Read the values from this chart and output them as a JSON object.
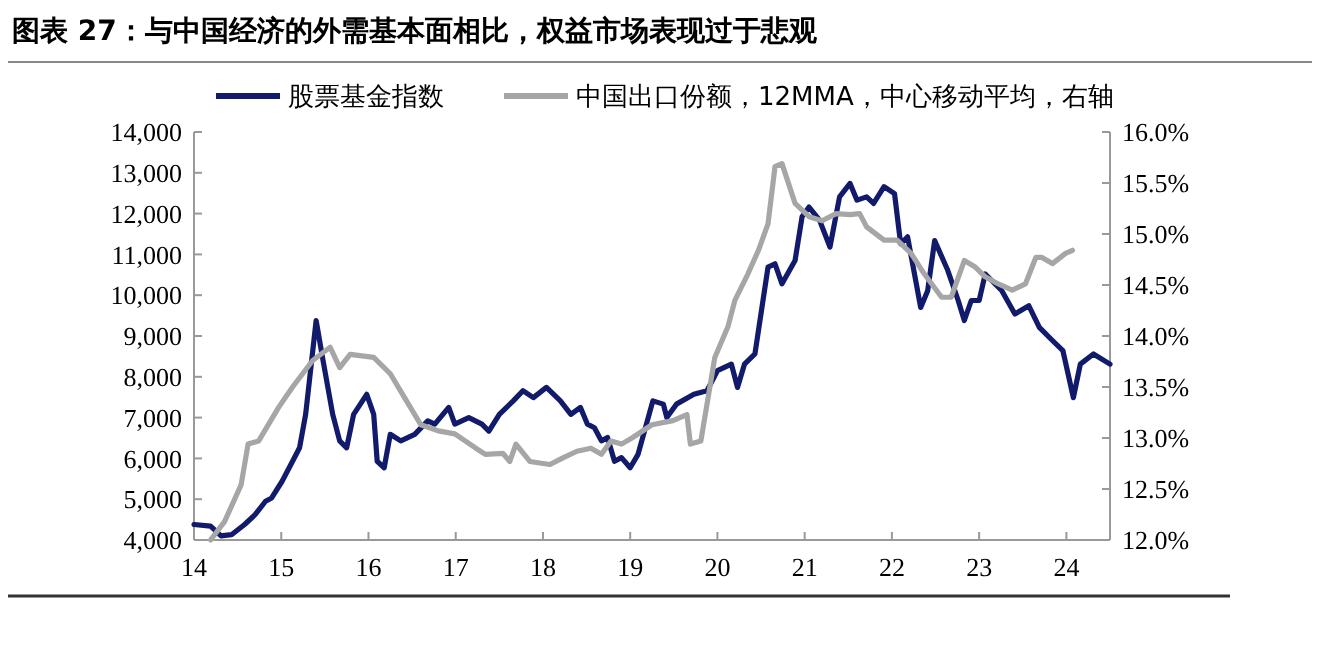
{
  "chart_data": {
    "type": "line",
    "title": "图表 27：与中国经济的外需基本面相比，权益市场表现过于悲观",
    "legend": "top",
    "grid": false,
    "xlim": [
      14,
      24.5
    ],
    "xticks": [
      14,
      15,
      16,
      17,
      18,
      19,
      20,
      21,
      22,
      23,
      24
    ],
    "ylim": [
      4000,
      14000
    ],
    "yticks": [
      {
        "value": 4000,
        "label": "4,000"
      },
      {
        "value": 5000,
        "label": "5,000"
      },
      {
        "value": 6000,
        "label": "6,000"
      },
      {
        "value": 7000,
        "label": "7,000"
      },
      {
        "value": 8000,
        "label": "8,000"
      },
      {
        "value": 9000,
        "label": "9,000"
      },
      {
        "value": 10000,
        "label": "10,000"
      },
      {
        "value": 11000,
        "label": "11,000"
      },
      {
        "value": 12000,
        "label": "12,000"
      },
      {
        "value": 13000,
        "label": "13,000"
      },
      {
        "value": 14000,
        "label": "14,000"
      }
    ],
    "y2lim": [
      12,
      16
    ],
    "y2ticks": [
      {
        "value": 12,
        "label": "12.0%"
      },
      {
        "value": 12.5,
        "label": "12.5%"
      },
      {
        "value": 13,
        "label": "13.0%"
      },
      {
        "value": 13.5,
        "label": "13.5%"
      },
      {
        "value": 14,
        "label": "14.0%"
      },
      {
        "value": 14.5,
        "label": "14.5%"
      },
      {
        "value": 15,
        "label": "15.0%"
      },
      {
        "value": 15.5,
        "label": "15.5%"
      },
      {
        "value": 16,
        "label": "16.0%"
      }
    ],
    "series": [
      {
        "name": "股票基金指数",
        "color": "#111a6b",
        "x": [
          14.0,
          14.19,
          14.31,
          14.43,
          14.58,
          14.7,
          14.82,
          14.89,
          15.01,
          15.13,
          15.21,
          15.28,
          15.4,
          15.48,
          15.59,
          15.67,
          15.75,
          15.83,
          15.98,
          16.06,
          16.1,
          16.18,
          16.25,
          16.37,
          16.53,
          16.68,
          16.76,
          16.92,
          16.99,
          17.15,
          17.3,
          17.38,
          17.5,
          17.66,
          17.77,
          17.89,
          18.04,
          18.2,
          18.32,
          18.43,
          18.51,
          18.59,
          18.67,
          18.74,
          18.82,
          18.9,
          19.0,
          19.09,
          19.26,
          19.38,
          19.42,
          19.53,
          19.73,
          19.88,
          20.0,
          20.16,
          20.23,
          20.31,
          20.43,
          20.58,
          20.66,
          20.74,
          20.89,
          20.97,
          21.05,
          21.17,
          21.29,
          21.4,
          21.52,
          21.6,
          21.71,
          21.79,
          21.91,
          22.03,
          22.1,
          22.18,
          22.33,
          22.41,
          22.49,
          22.64,
          22.76,
          22.83,
          22.91,
          23.0,
          23.07,
          23.26,
          23.41,
          23.57,
          23.69,
          23.84,
          23.96,
          24.08,
          24.16,
          24.31,
          24.5
        ],
        "values": [
          4380,
          4340,
          4100,
          4130,
          4380,
          4620,
          4950,
          5030,
          5440,
          5930,
          6260,
          7080,
          9380,
          8390,
          7080,
          6430,
          6260,
          7080,
          7570,
          7080,
          5930,
          5770,
          6590,
          6430,
          6590,
          6920,
          6840,
          7250,
          6840,
          7000,
          6840,
          6670,
          7080,
          7410,
          7660,
          7490,
          7740,
          7410,
          7080,
          7250,
          6840,
          6750,
          6430,
          6510,
          5930,
          6020,
          5770,
          6100,
          7410,
          7330,
          7000,
          7330,
          7570,
          7660,
          8150,
          8310,
          7740,
          8310,
          8560,
          10690,
          10770,
          10280,
          10850,
          11920,
          12160,
          11840,
          11180,
          12410,
          12740,
          12330,
          12410,
          12250,
          12660,
          12490,
          11260,
          11430,
          9700,
          10110,
          11340,
          10610,
          9870,
          9380,
          9870,
          9870,
          10520,
          10110,
          9540,
          9740,
          9210,
          8890,
          8640,
          7490,
          8310,
          8560,
          8310
        ]
      },
      {
        "name": "中国出口份额，12MMA，中心移动平均，右轴",
        "color": "#a6a6a6",
        "axis": "y2",
        "x": [
          14.19,
          14.35,
          14.54,
          14.62,
          14.74,
          14.97,
          15.13,
          15.36,
          15.56,
          15.67,
          15.79,
          16.06,
          16.25,
          16.41,
          16.6,
          16.8,
          16.99,
          17.23,
          17.34,
          17.54,
          17.62,
          17.69,
          17.85,
          18.08,
          18.24,
          18.39,
          18.55,
          18.67,
          18.78,
          18.9,
          19.02,
          19.25,
          19.49,
          19.65,
          19.69,
          19.81,
          19.97,
          20.12,
          20.2,
          20.35,
          20.47,
          20.58,
          20.66,
          20.74,
          20.89,
          21.05,
          21.2,
          21.36,
          21.52,
          21.63,
          21.71,
          21.91,
          22.06,
          22.22,
          22.37,
          22.57,
          22.68,
          22.83,
          22.95,
          23.07,
          23.22,
          23.38,
          23.53,
          23.65,
          23.72,
          23.84,
          23.99,
          24.07
        ],
        "values": [
          12.0,
          12.18,
          12.54,
          12.94,
          12.97,
          13.3,
          13.5,
          13.76,
          13.89,
          13.69,
          13.82,
          13.79,
          13.63,
          13.4,
          13.13,
          13.07,
          13.04,
          12.9,
          12.84,
          12.85,
          12.77,
          12.94,
          12.77,
          12.74,
          12.81,
          12.87,
          12.9,
          12.84,
          12.97,
          12.94,
          13.0,
          13.13,
          13.17,
          13.23,
          12.94,
          12.97,
          13.79,
          14.09,
          14.35,
          14.61,
          14.84,
          15.1,
          15.66,
          15.69,
          15.3,
          15.17,
          15.13,
          15.2,
          15.19,
          15.2,
          15.07,
          14.94,
          14.94,
          14.81,
          14.61,
          14.38,
          14.38,
          14.74,
          14.68,
          14.58,
          14.51,
          14.45,
          14.51,
          14.77,
          14.77,
          14.71,
          14.81,
          14.84
        ]
      }
    ]
  }
}
